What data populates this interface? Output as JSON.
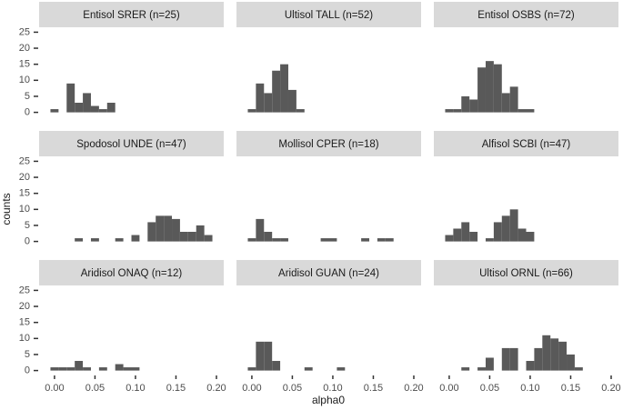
{
  "chart_data": {
    "type": "histogram",
    "xlabel": "alpha0",
    "ylabel": "counts",
    "xlim": [
      -0.019,
      0.209
    ],
    "ylim": [
      -1.25,
      26.25
    ],
    "xticks": [
      {
        "value": 0,
        "label": "0.00"
      },
      0.05,
      {
        "value": 0.1,
        "label": "0.10"
      },
      0.15,
      {
        "value": 0.2,
        "label": "0.20"
      }
    ],
    "yticks": [
      0,
      5,
      10,
      15,
      20,
      25
    ],
    "color": "#595959",
    "bins": [
      -0.005,
      0.005,
      0.015,
      0.025,
      0.035,
      0.045,
      0.055,
      0.065,
      0.075,
      0.085,
      0.095,
      0.105,
      0.115,
      0.125,
      0.135,
      0.145,
      0.155,
      0.165,
      0.175,
      0.185,
      0.195,
      0.205
    ],
    "panels": [
      {
        "title": "Entisol SRER (n=25)",
        "counts": [
          1,
          0,
          9,
          3,
          6,
          2,
          1,
          3,
          0,
          0,
          0,
          0,
          0,
          0,
          0,
          0,
          0,
          0,
          0,
          0,
          0
        ]
      },
      {
        "title": "Ultisol TALL (n=52)",
        "counts": [
          1,
          9,
          6,
          13,
          15,
          7,
          1,
          0,
          0,
          0,
          0,
          0,
          0,
          0,
          0,
          0,
          0,
          0,
          0,
          0,
          0
        ]
      },
      {
        "title": "Entisol OSBS (n=72)",
        "counts": [
          1,
          1,
          5,
          4,
          14,
          16,
          15,
          6,
          8,
          1,
          1,
          0,
          0,
          0,
          0,
          0,
          0,
          0,
          0,
          0,
          0
        ]
      },
      {
        "title": "Spodosol UNDE (n=47)",
        "counts": [
          0,
          0,
          0,
          1,
          0,
          1,
          0,
          0,
          1,
          0,
          2,
          0,
          6,
          8,
          8,
          7,
          3,
          3,
          5,
          2,
          0
        ]
      },
      {
        "title": "Mollisol CPER (n=18)",
        "counts": [
          1,
          7,
          3,
          1,
          1,
          0,
          0,
          0,
          0,
          1,
          1,
          0,
          0,
          0,
          1,
          0,
          1,
          1,
          0,
          0,
          0
        ]
      },
      {
        "title": "Alfisol SCBI (n=47)",
        "counts": [
          2,
          4,
          6,
          3,
          0,
          1,
          6,
          8,
          10,
          4,
          3,
          0,
          0,
          0,
          0,
          0,
          0,
          0,
          0,
          0,
          0
        ]
      },
      {
        "title": "Aridisol ONAQ (n=12)",
        "counts": [
          1,
          1,
          1,
          3,
          1,
          0,
          1,
          0,
          2,
          1,
          1,
          0,
          0,
          0,
          0,
          0,
          0,
          0,
          0,
          0,
          0
        ]
      },
      {
        "title": "Aridisol GUAN (n=24)",
        "counts": [
          1,
          9,
          9,
          3,
          0,
          0,
          0,
          1,
          0,
          0,
          0,
          1,
          0,
          0,
          0,
          0,
          0,
          0,
          0,
          0,
          0
        ]
      },
      {
        "title": "Ultisol ORNL (n=66)",
        "counts": [
          0,
          0,
          1,
          0,
          1,
          4,
          0,
          7,
          7,
          0,
          3,
          7,
          11,
          10,
          9,
          5,
          1,
          0,
          0,
          0,
          0
        ]
      }
    ]
  }
}
